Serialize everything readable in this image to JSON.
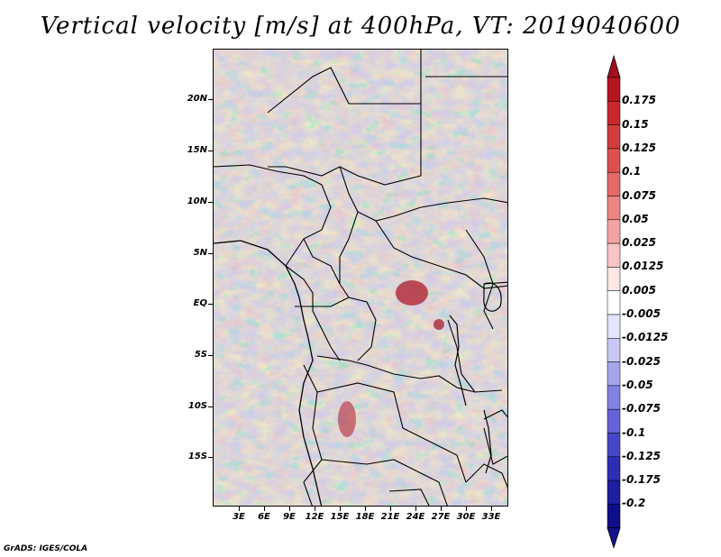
{
  "title": "Vertical velocity [m/s] at 400hPa, VT: 2019040600",
  "footer": "GrADS: IGES/COLA",
  "map": {
    "region": "Central Africa",
    "lat_labels": [
      "20N",
      "15N",
      "10N",
      "5N",
      "EQ",
      "5S",
      "10S",
      "15S"
    ],
    "lon_labels": [
      "3E",
      "6E",
      "9E",
      "12E",
      "15E",
      "18E",
      "21E",
      "24E",
      "27E",
      "30E",
      "33E"
    ]
  },
  "colorbar": {
    "labels": [
      "0.175",
      "0.15",
      "0.125",
      "0.1",
      "0.075",
      "0.05",
      "0.025",
      "0.0125",
      "0.005",
      "-0.005",
      "-0.0125",
      "-0.025",
      "-0.05",
      "-0.075",
      "-0.1",
      "-0.125",
      "-0.175",
      "-0.2"
    ],
    "colors": [
      "#b4141e",
      "#c8282d",
      "#d23c3c",
      "#dc5050",
      "#e66969",
      "#ee8585",
      "#f4a3a3",
      "#f8c4c4",
      "#fce6e6",
      "#ffffff",
      "#e4e4fa",
      "#c8c8f4",
      "#a5a5ec",
      "#8282e2",
      "#6464d8",
      "#4646c8",
      "#2d2db4",
      "#1e1ea0",
      "#0e0e88"
    ],
    "top_arrow_color": "#a0101e",
    "bottom_arrow_color": "#12128c"
  }
}
